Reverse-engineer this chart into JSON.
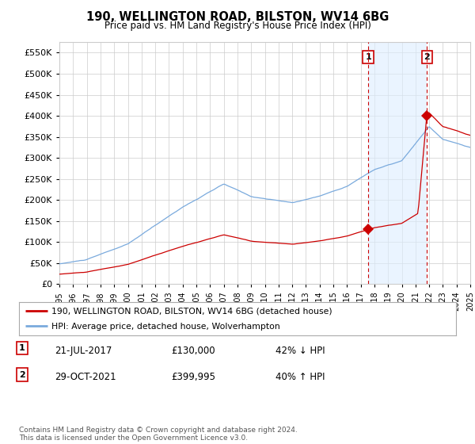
{
  "title": "190, WELLINGTON ROAD, BILSTON, WV14 6BG",
  "subtitle": "Price paid vs. HM Land Registry's House Price Index (HPI)",
  "ylabel_ticks": [
    "£0",
    "£50K",
    "£100K",
    "£150K",
    "£200K",
    "£250K",
    "£300K",
    "£350K",
    "£400K",
    "£450K",
    "£500K",
    "£550K"
  ],
  "ytick_values": [
    0,
    50000,
    100000,
    150000,
    200000,
    250000,
    300000,
    350000,
    400000,
    450000,
    500000,
    550000
  ],
  "ylim": [
    0,
    575000
  ],
  "xmin_year": 1995,
  "xmax_year": 2025,
  "xticks": [
    1995,
    1996,
    1997,
    1998,
    1999,
    2000,
    2001,
    2002,
    2003,
    2004,
    2005,
    2006,
    2007,
    2008,
    2009,
    2010,
    2011,
    2012,
    2013,
    2014,
    2015,
    2016,
    2017,
    2018,
    2019,
    2020,
    2021,
    2022,
    2023,
    2024,
    2025
  ],
  "sale1_date": 2017.55,
  "sale1_price": 130000,
  "sale1_label": "1",
  "sale2_date": 2021.83,
  "sale2_price": 399995,
  "sale2_label": "2",
  "hpi_color": "#7aaadd",
  "hpi_fill_color": "#ddeeff",
  "price_color": "#cc0000",
  "sale_dot_color": "#cc0000",
  "dashed_vline_color": "#cc0000",
  "grid_color": "#cccccc",
  "background_color": "#ffffff",
  "plot_bg_color": "#ffffff",
  "legend1_label": "190, WELLINGTON ROAD, BILSTON, WV14 6BG (detached house)",
  "legend2_label": "HPI: Average price, detached house, Wolverhampton",
  "note1_num": "1",
  "note1_date": "21-JUL-2017",
  "note1_price": "£130,000",
  "note1_hpi": "42% ↓ HPI",
  "note2_num": "2",
  "note2_date": "29-OCT-2021",
  "note2_price": "£399,995",
  "note2_hpi": "40% ↑ HPI",
  "footer": "Contains HM Land Registry data © Crown copyright and database right 2024.\nThis data is licensed under the Open Government Licence v3.0."
}
